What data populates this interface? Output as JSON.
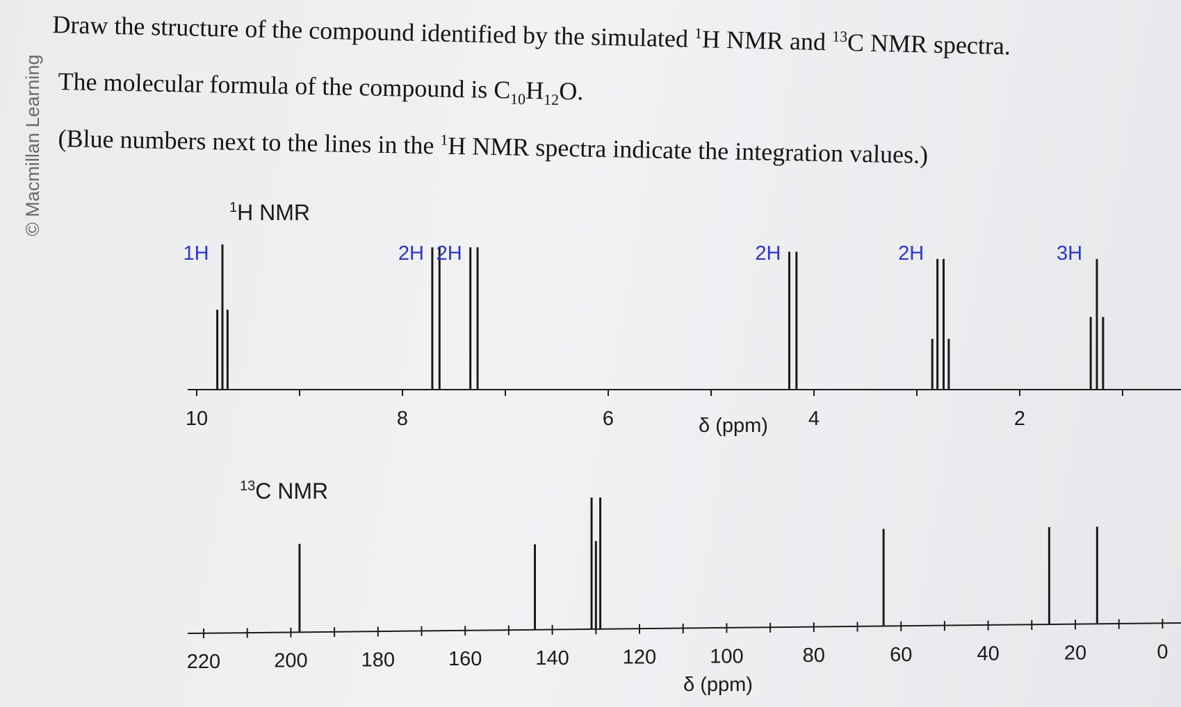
{
  "copyright": "© Macmillan Learning",
  "question": {
    "line1_a": "Draw the structure of the compound identified by the simulated ",
    "line1_sup1": "1",
    "line1_b": "H NMR and ",
    "line1_sup2": "13",
    "line1_c": "C NMR spectra.",
    "line2_a": "The molecular formula of the compound is C",
    "line2_sub1": "10",
    "line2_b": "H",
    "line2_sub2": "12",
    "line2_c": "O.",
    "line3_a": "(Blue numbers next to the lines in the ",
    "line3_sup": "1",
    "line3_b": "H NMR spectra indicate the integration values.)"
  },
  "colors": {
    "integration_blue": "#2b35c9",
    "line_black": "#1a1a1a"
  },
  "chart_data": [
    {
      "type": "bar",
      "title": "1H NMR",
      "title_sup": "1",
      "title_text": "H NMR",
      "xlabel": "δ (ppm)",
      "x_reversed": true,
      "xlim": [
        10.2,
        -0.4
      ],
      "ticks": [
        10,
        9,
        8,
        7,
        6,
        5,
        4,
        3,
        2,
        1
      ],
      "tick_labels": [
        {
          "value": 10,
          "label": "10"
        },
        {
          "value": 8,
          "label": "8"
        },
        {
          "value": 6,
          "label": "6"
        },
        {
          "value": 4,
          "label": "4"
        },
        {
          "value": 2,
          "label": "2"
        }
      ],
      "signals": [
        {
          "integration": "1H",
          "lines": [
            {
              "ppm": 9.75,
              "h": 1.0
            },
            {
              "ppm": 9.8,
              "h": 0.55
            },
            {
              "ppm": 9.7,
              "h": 0.55
            }
          ]
        },
        {
          "integration": "2H",
          "lines": [
            {
              "ppm": 7.71,
              "h": 0.98
            },
            {
              "ppm": 7.64,
              "h": 0.98
            }
          ]
        },
        {
          "integration": "2H",
          "lines": [
            {
              "ppm": 7.34,
              "h": 0.98
            },
            {
              "ppm": 7.27,
              "h": 0.98
            }
          ]
        },
        {
          "integration": "2H",
          "lines": [
            {
              "ppm": 4.24,
              "h": 0.95
            },
            {
              "ppm": 4.17,
              "h": 0.95
            }
          ]
        },
        {
          "integration": "2H",
          "lines": [
            {
              "ppm": 2.85,
              "h": 0.35
            },
            {
              "ppm": 2.8,
              "h": 0.9
            },
            {
              "ppm": 2.74,
              "h": 0.9
            },
            {
              "ppm": 2.69,
              "h": 0.35
            }
          ]
        },
        {
          "integration": "3H",
          "lines": [
            {
              "ppm": 1.31,
              "h": 0.5
            },
            {
              "ppm": 1.25,
              "h": 0.9
            },
            {
              "ppm": 1.19,
              "h": 0.5
            }
          ]
        }
      ]
    },
    {
      "type": "bar",
      "title": "13C NMR",
      "title_sup": "13",
      "title_text": "C NMR",
      "xlabel": "δ (ppm)",
      "x_reversed": true,
      "xlim": [
        222,
        -2
      ],
      "ticks": [
        220,
        210,
        200,
        190,
        180,
        170,
        160,
        150,
        140,
        130,
        120,
        110,
        100,
        90,
        80,
        70,
        60,
        50,
        40,
        30,
        20,
        10,
        0
      ],
      "tick_labels": [
        {
          "value": 220,
          "label": "220"
        },
        {
          "value": 200,
          "label": "200"
        },
        {
          "value": 180,
          "label": "180"
        },
        {
          "value": 160,
          "label": "160"
        },
        {
          "value": 140,
          "label": "140"
        },
        {
          "value": 120,
          "label": "120"
        },
        {
          "value": 100,
          "label": "100"
        },
        {
          "value": 80,
          "label": "80"
        },
        {
          "value": 60,
          "label": "60"
        },
        {
          "value": 40,
          "label": "40"
        },
        {
          "value": 20,
          "label": "20"
        },
        {
          "value": 0,
          "label": "0"
        }
      ],
      "peaks": [
        {
          "ppm": 198,
          "h": 0.67
        },
        {
          "ppm": 144,
          "h": 0.65
        },
        {
          "ppm": 131,
          "h": 1.0
        },
        {
          "ppm": 130,
          "h": 0.67
        },
        {
          "ppm": 129,
          "h": 1.0
        },
        {
          "ppm": 64,
          "h": 0.74
        },
        {
          "ppm": 26,
          "h": 0.74
        },
        {
          "ppm": 15,
          "h": 0.74
        }
      ]
    }
  ]
}
